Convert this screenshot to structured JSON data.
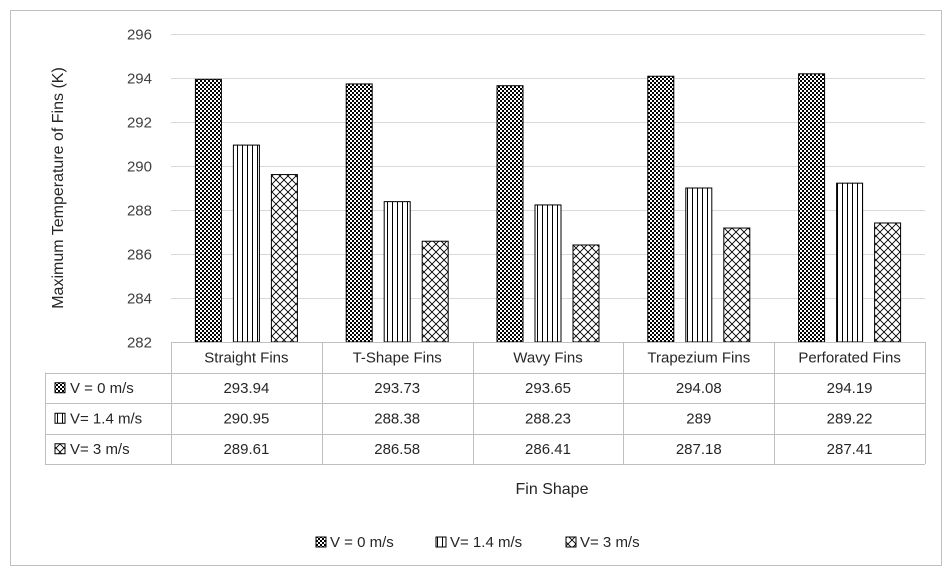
{
  "chart_data": {
    "type": "bar",
    "title": "",
    "xlabel": "Fin Shape",
    "ylabel": "Maximum Temperature of Fins (K)",
    "ylim": [
      282,
      296
    ],
    "yticks": [
      296,
      294,
      292,
      290,
      288,
      286,
      284,
      282
    ],
    "grid": true,
    "legend_position": "bottom",
    "data_table": true,
    "categories": [
      "Straight Fins",
      "T-Shape Fins",
      "Wavy Fins",
      "Trapezium Fins",
      "Perforated Fins"
    ],
    "series": [
      {
        "name": "V = 0 m/s",
        "legend_label": "V = 0 m/s",
        "pattern": "checker",
        "values": [
          293.94,
          293.73,
          293.65,
          294.08,
          294.19
        ],
        "labels": [
          "293.94",
          "293.73",
          "293.65",
          "294.08",
          "294.19"
        ]
      },
      {
        "name": "V= 1.4 m/s",
        "legend_label": "V= 1.4 m/s",
        "pattern": "vertical",
        "values": [
          290.95,
          288.38,
          288.23,
          289,
          289.22
        ],
        "labels": [
          "290.95",
          "288.38",
          "288.23",
          "289",
          "289.22"
        ]
      },
      {
        "name": "V= 3 m/s",
        "legend_label": "V= 3 m/s",
        "pattern": "diamond",
        "values": [
          289.61,
          286.58,
          286.41,
          287.18,
          287.41
        ],
        "labels": [
          "289.61",
          "286.58",
          "286.41",
          "287.18",
          "287.41"
        ]
      }
    ],
    "colors": {
      "bar_stroke": "#000000",
      "grid": "#d9d9d9",
      "border": "#bfbfbf",
      "text": "#262626"
    }
  }
}
